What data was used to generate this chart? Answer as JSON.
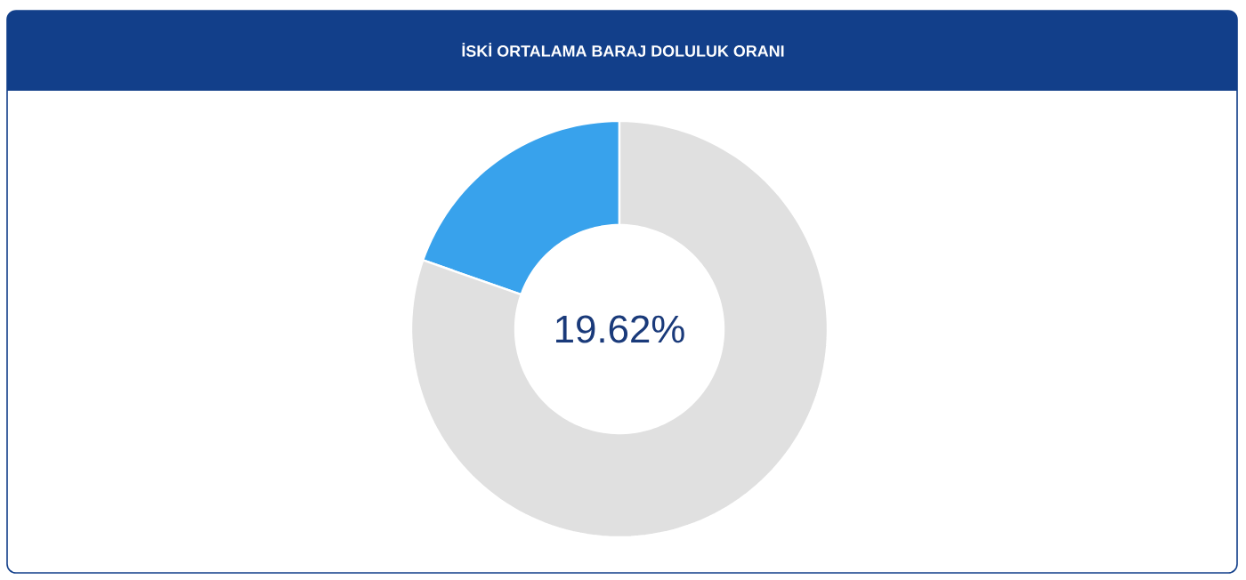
{
  "chart_data": {
    "type": "donut",
    "title": "İSKİ ORTALAMA BARAJ DOLULUK ORANI",
    "categories": [
      null,
      null
    ],
    "values": [
      19.62,
      80.38
    ],
    "colors": [
      "#38a2ec",
      "#e0e0e0"
    ],
    "annotations": [
      "19.62%"
    ]
  }
}
